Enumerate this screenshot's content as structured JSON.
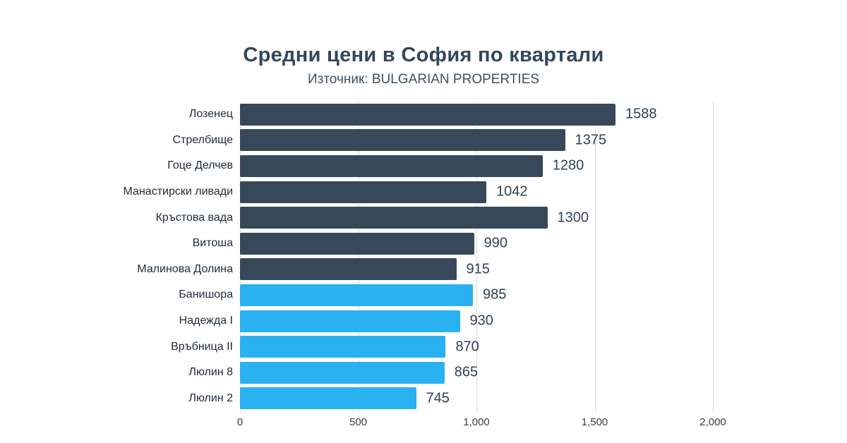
{
  "colors": {
    "bar_dark": "#36485A",
    "bar_blue": "#29B1F2",
    "title": "#33475C",
    "subtitle": "#3F4F60",
    "category_label": "#1F2A37",
    "value_label": "#2E4257",
    "grid": "#D9D9D9",
    "tick": "#3C3C3C",
    "background": "#FFFFFF"
  },
  "chart_data": {
    "type": "bar",
    "orientation": "horizontal",
    "title": "Средни цени в София по квартали",
    "source": "Източник: BULGARIAN PROPERTIES",
    "categories": [
      "Лозенец",
      "Стрелбище",
      "Гоце Делчев",
      "Манастирски ливади",
      "Кръстова вада",
      "Витоша",
      "Малинова Долина",
      "Банишора",
      "Надежда I",
      "Връбница II",
      "Люлин 8",
      "Люлин 2"
    ],
    "values": [
      1588,
      1375,
      1280,
      1042,
      1300,
      990,
      915,
      985,
      930,
      870,
      865,
      745
    ],
    "bar_colors": [
      "#36485A",
      "#36485A",
      "#36485A",
      "#36485A",
      "#36485A",
      "#36485A",
      "#36485A",
      "#29B1F2",
      "#29B1F2",
      "#29B1F2",
      "#29B1F2",
      "#29B1F2"
    ],
    "xlim": [
      0,
      2000
    ],
    "x_ticks": [
      0,
      500,
      1000,
      1500,
      2000
    ],
    "x_tick_labels": [
      "0",
      "500",
      "1,000",
      "1,500",
      "2,000"
    ],
    "grid": true,
    "legend": false,
    "value_labels": true
  }
}
